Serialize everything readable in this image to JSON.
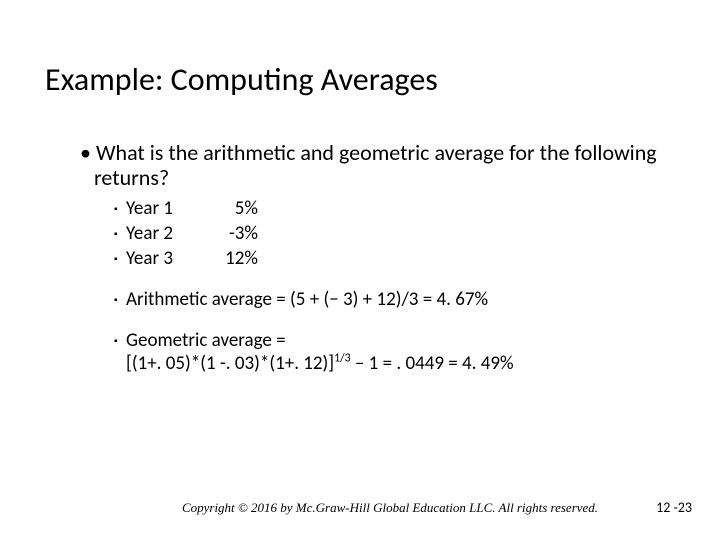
{
  "title": "Example: Computing Averages",
  "question": "What is the arithmetic and geometric average for the following returns?",
  "years": [
    {
      "label": "Year 1",
      "value": "5%"
    },
    {
      "label": "Year 2",
      "value": "-3%"
    },
    {
      "label": "Year 3",
      "value": "12%"
    }
  ],
  "arithmetic": "Arithmetic average = (5 + (− 3) + 12)/3 = 4. 67%",
  "geometric_label": "Geometric average =",
  "geometric_expr_pre": "[(1+. 05)*(1 -. 03)*(1+. 12)]",
  "geometric_sup": "1/3",
  "geometric_expr_post": " – 1 = . 0449 = 4. 49%",
  "copyright": "Copyright © 2016 by Mc.Graw-Hill Global Education LLC. All rights reserved.",
  "pagenum": "12 -23",
  "colors": {
    "bg": "#ffffff",
    "text": "#000000"
  },
  "fontsizes": {
    "title": 32,
    "body": 22,
    "sub": 19,
    "footer": 13,
    "pagenum": 14
  }
}
